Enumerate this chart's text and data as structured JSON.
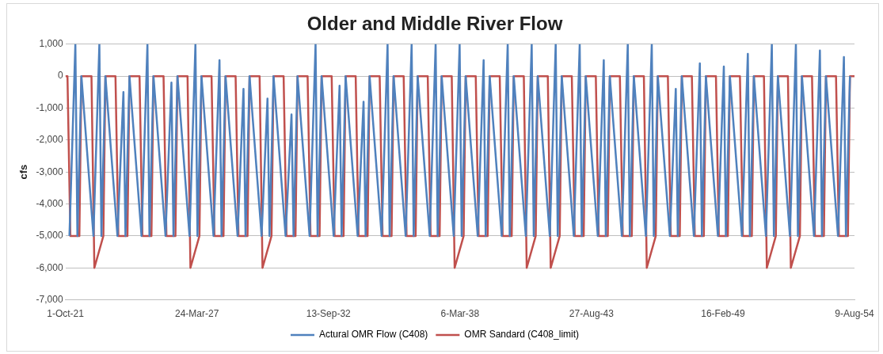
{
  "chart_data": {
    "type": "line",
    "title": "Older and Middle River Flow",
    "ylabel": "cfs",
    "xlim": [
      "1921-10-01",
      "1954-08-09"
    ],
    "xticks": [
      {
        "value": "1921-10-01",
        "label": "1-Oct-21"
      },
      {
        "value": "1927-03-24",
        "label": "24-Mar-27"
      },
      {
        "value": "1932-09-13",
        "label": "13-Sep-32"
      },
      {
        "value": "1938-03-06",
        "label": "6-Mar-38"
      },
      {
        "value": "1943-08-27",
        "label": "27-Aug-43"
      },
      {
        "value": "1949-02-16",
        "label": "16-Feb-49"
      },
      {
        "value": "1954-08-09",
        "label": "9-Aug-54"
      }
    ],
    "ylim": [
      -7000,
      1000
    ],
    "yticks": [
      {
        "value": 1000,
        "label": "1,000"
      },
      0,
      {
        "value": -1000,
        "label": "-1,000"
      },
      {
        "value": -2000,
        "label": "-2,000"
      },
      {
        "value": -3000,
        "label": "-3,000"
      },
      {
        "value": -4000,
        "label": "-4,000"
      },
      {
        "value": -5000,
        "label": "-5,000"
      },
      {
        "value": -6000,
        "label": "-6,000"
      },
      {
        "value": -7000,
        "label": "-7,000"
      }
    ],
    "grid": "y",
    "legend": "bottom",
    "marker": "none",
    "line_style": "solid",
    "series": [
      {
        "name": "Actural OMR Flow (C408)",
        "color": "#4f81bd",
        "x": [
          "1921-12-01",
          "1922-03-01",
          "1922-04-01",
          "1922-06-01",
          "1922-12-01",
          "1923-03-01",
          "1923-04-01",
          "1923-06-01",
          "1923-12-01",
          "1924-03-01",
          "1924-04-01",
          "1924-06-01",
          "1924-12-01",
          "1925-03-01",
          "1925-04-01",
          "1925-06-01",
          "1925-12-01",
          "1926-03-01",
          "1926-04-01",
          "1926-06-01",
          "1926-12-01",
          "1927-03-01",
          "1927-04-01",
          "1927-06-01",
          "1927-12-01",
          "1928-03-01",
          "1928-04-01",
          "1928-06-01",
          "1928-12-01",
          "1929-03-01",
          "1929-04-01",
          "1929-06-01",
          "1929-12-01",
          "1930-03-01",
          "1930-04-01",
          "1930-06-01",
          "1930-12-01",
          "1931-03-01",
          "1931-04-01",
          "1931-06-01",
          "1931-12-01",
          "1932-03-01",
          "1932-04-01",
          "1932-06-01",
          "1932-12-01",
          "1933-03-01",
          "1933-04-01",
          "1933-06-01",
          "1933-12-01",
          "1934-03-01",
          "1934-04-01",
          "1934-06-01",
          "1934-12-01",
          "1935-03-01",
          "1935-04-01",
          "1935-06-01",
          "1935-12-01",
          "1936-03-01",
          "1936-04-01",
          "1936-06-01",
          "1936-12-01",
          "1937-03-01",
          "1937-04-01",
          "1937-06-01",
          "1937-12-01",
          "1938-03-01",
          "1938-04-01",
          "1938-06-01",
          "1938-12-01",
          "1939-03-01",
          "1939-04-01",
          "1939-06-01",
          "1939-12-01",
          "1940-03-01",
          "1940-04-01",
          "1940-06-01",
          "1940-12-01",
          "1941-03-01",
          "1941-04-01",
          "1941-06-01",
          "1941-12-01",
          "1942-03-01",
          "1942-04-01",
          "1942-06-01",
          "1942-12-01",
          "1943-03-01",
          "1943-04-01",
          "1943-06-01",
          "1943-12-01",
          "1944-03-01",
          "1944-04-01",
          "1944-06-01",
          "1944-12-01",
          "1945-03-01",
          "1945-04-01",
          "1945-06-01",
          "1945-12-01",
          "1946-03-01",
          "1946-04-01",
          "1946-06-01",
          "1946-12-01",
          "1947-03-01",
          "1947-04-01",
          "1947-06-01",
          "1947-12-01",
          "1948-03-01",
          "1948-04-01",
          "1948-06-01",
          "1948-12-01",
          "1949-03-01",
          "1949-04-01",
          "1949-06-01",
          "1949-12-01",
          "1950-03-01",
          "1950-04-01",
          "1950-06-01",
          "1950-12-01",
          "1951-03-01",
          "1951-04-01",
          "1951-06-01",
          "1951-12-01",
          "1952-03-01",
          "1952-04-01",
          "1952-06-01",
          "1952-12-01",
          "1953-03-01",
          "1953-04-01",
          "1953-06-01",
          "1953-12-01",
          "1954-03-01",
          "1954-04-01",
          "1954-06-01"
        ],
        "values": [
          -5000,
          1000,
          -5000,
          0,
          -5000,
          1000,
          -5000,
          0,
          -5000,
          -500,
          -5000,
          0,
          -5000,
          1000,
          -5000,
          0,
          -5000,
          -200,
          -5000,
          0,
          -5000,
          1000,
          -5000,
          0,
          -5000,
          500,
          -5000,
          0,
          -5000,
          -400,
          -5000,
          0,
          -5000,
          -700,
          -5000,
          0,
          -5000,
          -1200,
          -5000,
          0,
          -5000,
          1000,
          -5000,
          0,
          -5000,
          -300,
          -5000,
          0,
          -5000,
          -800,
          -5000,
          0,
          -5000,
          1000,
          -5000,
          0,
          -5000,
          1000,
          -5000,
          0,
          -5000,
          1000,
          -5000,
          0,
          -5000,
          1000,
          -5000,
          0,
          -5000,
          500,
          -5000,
          0,
          -5000,
          1000,
          -5000,
          0,
          -5000,
          1000,
          -5000,
          0,
          -5000,
          1000,
          -5000,
          0,
          -5000,
          1000,
          -5000,
          0,
          -5000,
          500,
          -5000,
          0,
          -5000,
          1000,
          -5000,
          0,
          -5000,
          1000,
          -5000,
          0,
          -5000,
          -400,
          -5000,
          0,
          -5000,
          400,
          -5000,
          0,
          -5000,
          300,
          -5000,
          0,
          -5000,
          700,
          -5000,
          0,
          -5000,
          1000,
          -5000,
          0,
          -5000,
          1000,
          -5000,
          0,
          -5000,
          800,
          -5000,
          0,
          -5000,
          600,
          -5000,
          0
        ]
      },
      {
        "name": "OMR Sandard (C408_limit)",
        "color": "#c0504d",
        "x": [
          "1921-10-01",
          "1921-11-01",
          "1921-12-15",
          "1922-05-01",
          "1922-06-01",
          "1922-11-01",
          "1922-12-15",
          "1923-05-01",
          "1923-06-01",
          "1923-11-01",
          "1923-12-15",
          "1924-05-01",
          "1924-06-01",
          "1924-11-01",
          "1924-12-15",
          "1925-05-01",
          "1925-06-01",
          "1925-11-01",
          "1925-12-15",
          "1926-05-01",
          "1926-06-01",
          "1926-11-01",
          "1926-12-15",
          "1927-05-01",
          "1927-06-01",
          "1927-11-01",
          "1927-12-15",
          "1928-05-01",
          "1928-06-01",
          "1928-11-01",
          "1928-12-15",
          "1929-05-01",
          "1929-06-01",
          "1929-11-01",
          "1929-12-15",
          "1930-05-01",
          "1930-06-01",
          "1930-11-01",
          "1930-12-15",
          "1931-05-01",
          "1931-06-01",
          "1931-11-01",
          "1931-12-15",
          "1932-05-01",
          "1932-06-01",
          "1932-11-01",
          "1932-12-15",
          "1933-05-01",
          "1933-06-01",
          "1933-11-01",
          "1933-12-15",
          "1934-05-01",
          "1934-06-01",
          "1934-11-01",
          "1934-12-15",
          "1935-05-01",
          "1935-06-01",
          "1935-11-01",
          "1935-12-15",
          "1936-05-01",
          "1936-06-01",
          "1936-11-01",
          "1936-12-15",
          "1937-05-01",
          "1937-06-01",
          "1937-11-01",
          "1937-12-15",
          "1938-05-01",
          "1938-06-01",
          "1938-11-01",
          "1938-12-15",
          "1939-05-01",
          "1939-06-01",
          "1939-11-01",
          "1939-12-15",
          "1940-05-01",
          "1940-06-01",
          "1940-11-01",
          "1940-12-15",
          "1941-05-01",
          "1941-06-01",
          "1941-11-01",
          "1941-12-15",
          "1942-05-01",
          "1942-06-01",
          "1942-11-01",
          "1942-12-15",
          "1943-05-01",
          "1943-06-01",
          "1943-11-01",
          "1943-12-15",
          "1944-05-01",
          "1944-06-01",
          "1944-11-01",
          "1944-12-15",
          "1945-05-01",
          "1945-06-01",
          "1945-11-01",
          "1945-12-15",
          "1946-05-01",
          "1946-06-01",
          "1946-11-01",
          "1946-12-15",
          "1947-05-01",
          "1947-06-01",
          "1947-11-01",
          "1947-12-15",
          "1948-05-01",
          "1948-06-01",
          "1948-11-01",
          "1948-12-15",
          "1949-05-01",
          "1949-06-01",
          "1949-11-01",
          "1949-12-15",
          "1950-05-01",
          "1950-06-01",
          "1950-11-01",
          "1950-12-15",
          "1951-05-01",
          "1951-06-01",
          "1951-11-01",
          "1951-12-15",
          "1952-05-01",
          "1952-06-01",
          "1952-11-01",
          "1952-12-15",
          "1953-05-01",
          "1953-06-01",
          "1953-11-01",
          "1953-12-15",
          "1954-05-01",
          "1954-06-01",
          "1954-08-09"
        ],
        "values": [
          0,
          0,
          -5000,
          -5000,
          0,
          0,
          -6000,
          -5000,
          0,
          0,
          -5000,
          -5000,
          0,
          0,
          -5000,
          -5000,
          0,
          0,
          -5000,
          -5000,
          0,
          0,
          -6000,
          -5000,
          0,
          0,
          -5000,
          -5000,
          0,
          0,
          -5000,
          -5000,
          0,
          0,
          -6000,
          -5000,
          0,
          0,
          -5000,
          -5000,
          0,
          0,
          -5000,
          -5000,
          0,
          0,
          -5000,
          -5000,
          0,
          0,
          -5000,
          -5000,
          0,
          0,
          -5000,
          -5000,
          0,
          0,
          -5000,
          -5000,
          0,
          0,
          -5000,
          -5000,
          0,
          0,
          -6000,
          -5000,
          0,
          0,
          -5000,
          -5000,
          0,
          0,
          -5000,
          -5000,
          0,
          0,
          -6000,
          -5000,
          0,
          0,
          -6000,
          -5000,
          0,
          0,
          -5000,
          -5000,
          0,
          0,
          -5000,
          -5000,
          0,
          0,
          -5000,
          -5000,
          0,
          0,
          -6000,
          -5000,
          0,
          0,
          -5000,
          -5000,
          0,
          0,
          -5000,
          -5000,
          0,
          0,
          -5000,
          -5000,
          0,
          0,
          -5000,
          -5000,
          0,
          0,
          -6000,
          -5000,
          0,
          0,
          -6000,
          -5000,
          0,
          0,
          -5000,
          -5000,
          0,
          0,
          -5000,
          -5000,
          0,
          0
        ]
      }
    ]
  }
}
